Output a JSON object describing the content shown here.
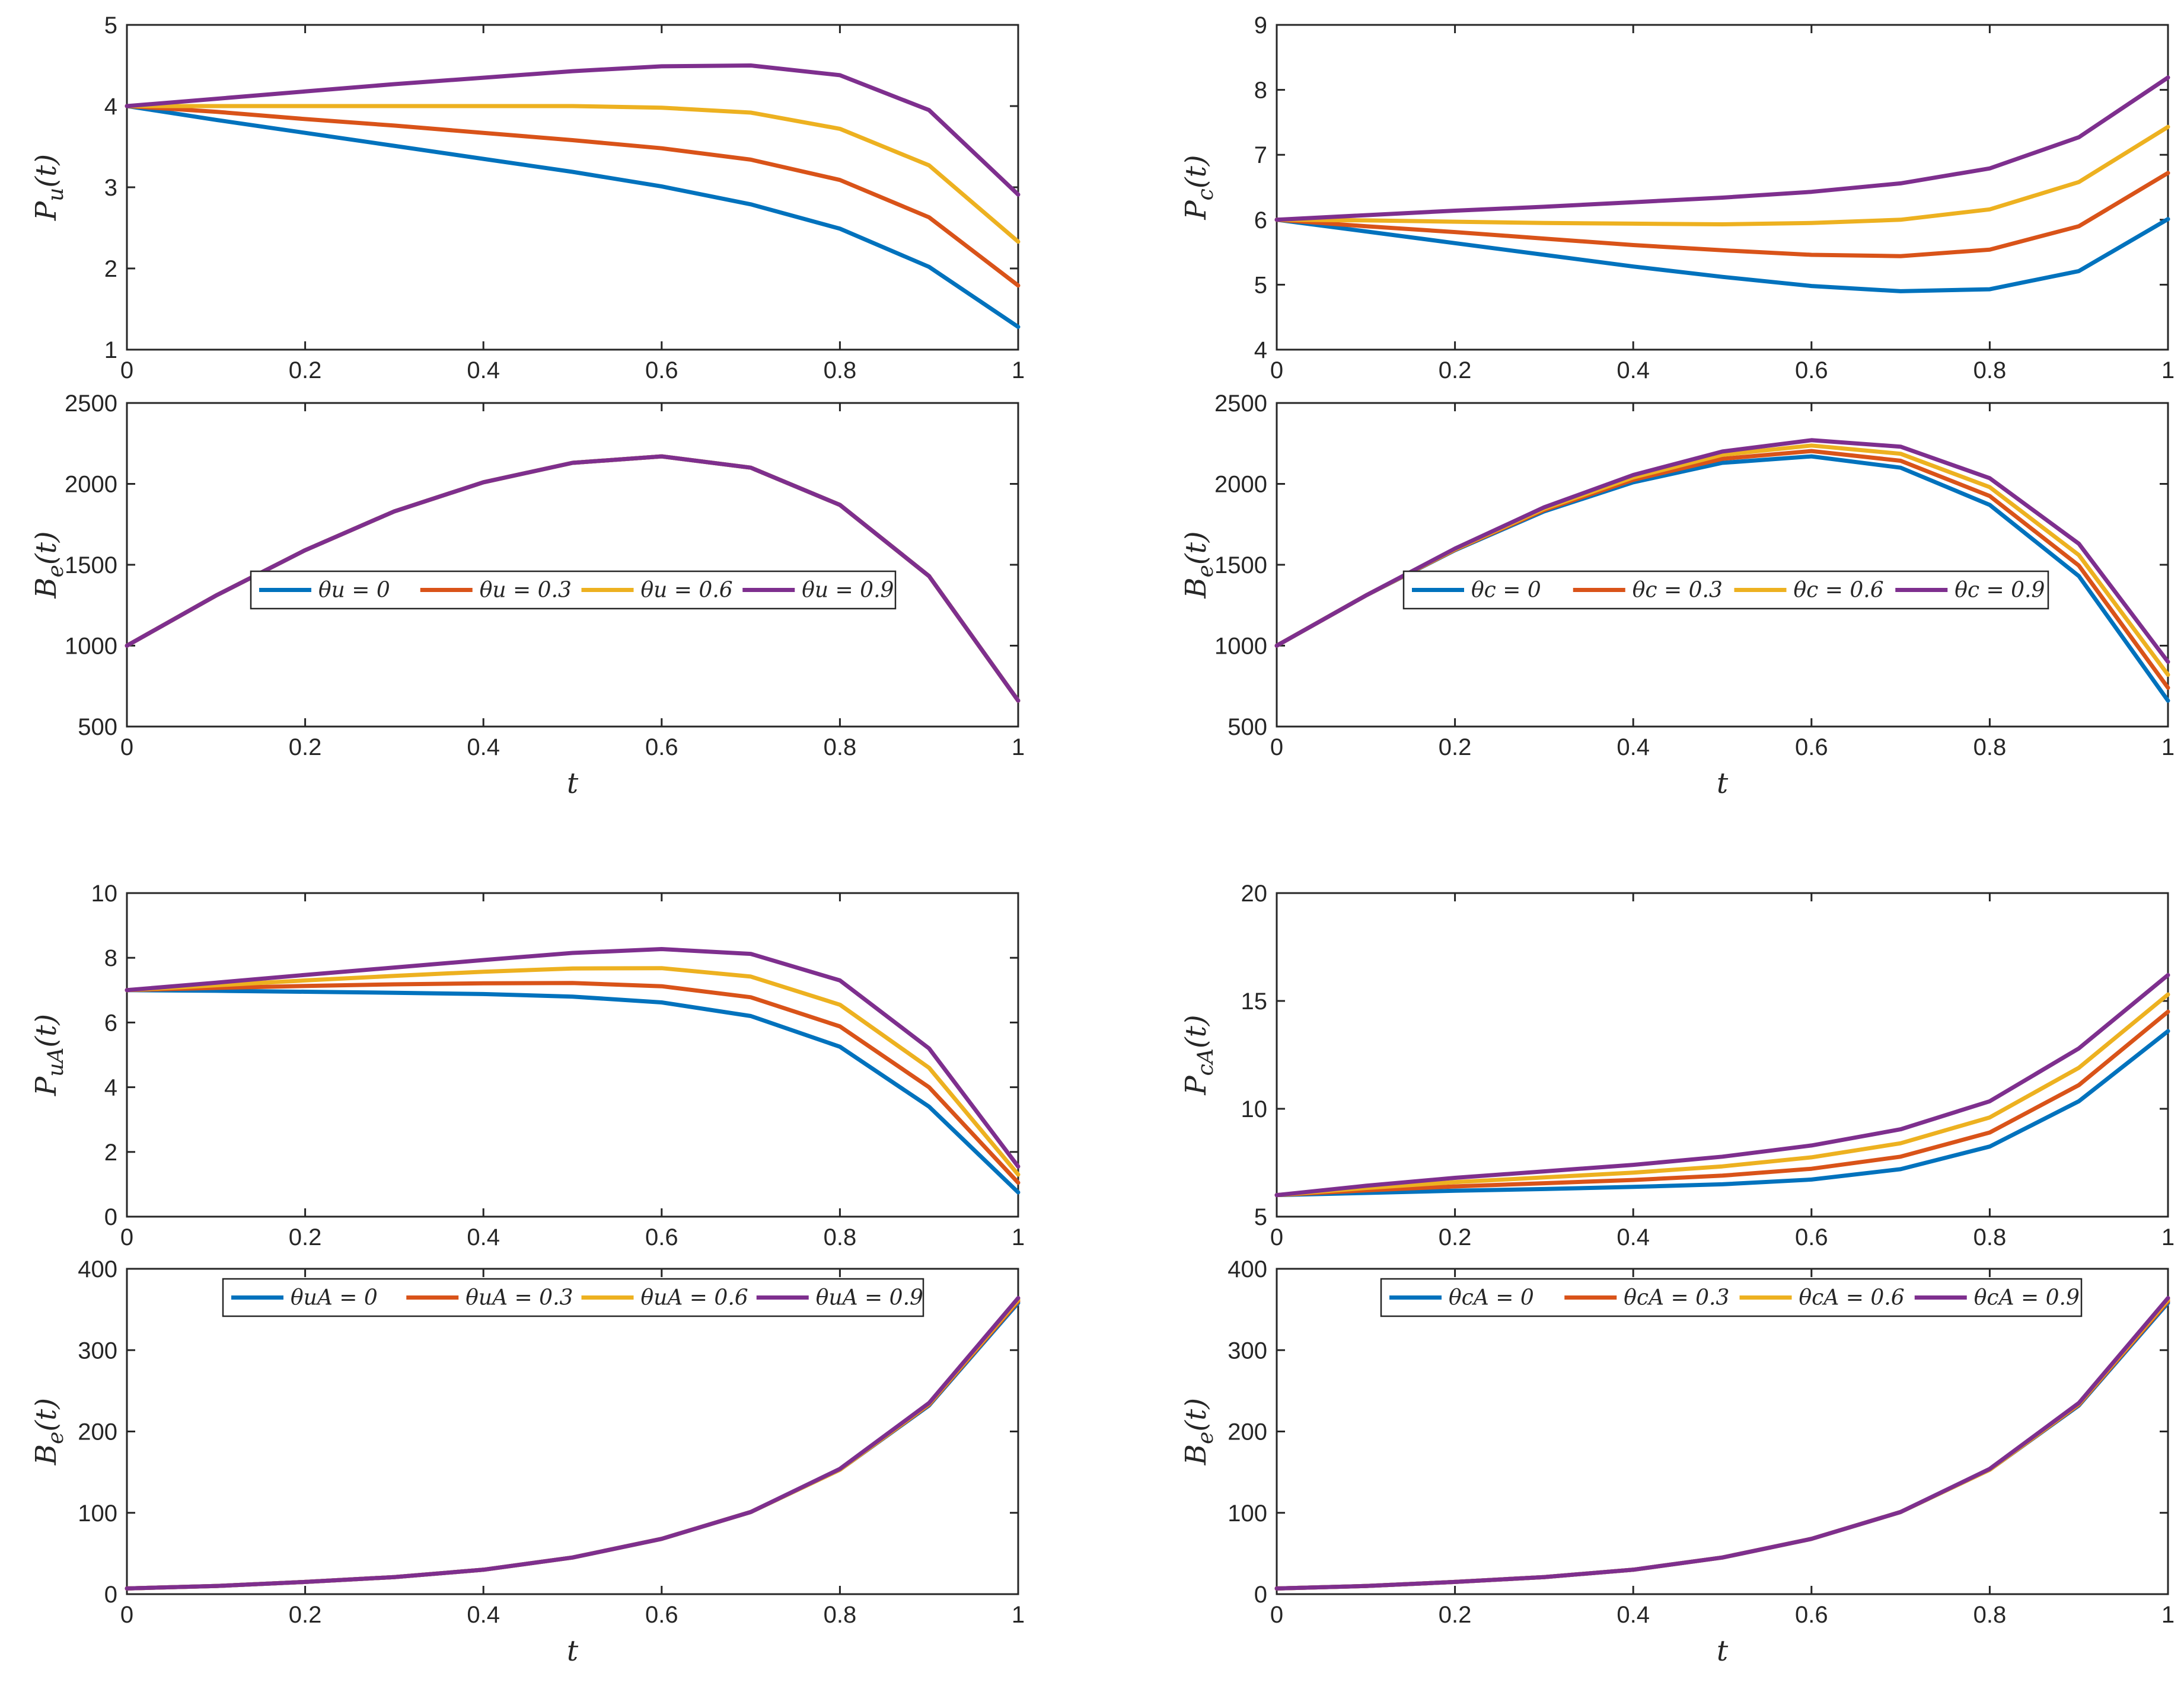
{
  "colors": [
    "#0072BD",
    "#D95319",
    "#EDB120",
    "#7E2F8E"
  ],
  "chart_data": [
    {
      "type": "line",
      "ylabel": "P_u(t)",
      "xlabel": "",
      "xlim": [
        0,
        1
      ],
      "ylim": [
        1,
        5
      ],
      "xticks": [
        "0",
        "0.2",
        "0.4",
        "0.6",
        "0.8",
        "1"
      ],
      "yticks": [
        "1",
        "2",
        "3",
        "4",
        "5"
      ],
      "x": [
        0,
        0.1,
        0.2,
        0.3,
        0.4,
        0.5,
        0.6,
        0.7,
        0.8,
        0.9,
        1
      ],
      "series": [
        {
          "name": "θu = 0",
          "values": [
            4.0,
            3.83,
            3.67,
            3.51,
            3.35,
            3.19,
            3.01,
            2.79,
            2.49,
            2.02,
            1.28
          ]
        },
        {
          "name": "θu = 0.3",
          "values": [
            4.0,
            3.93,
            3.84,
            3.76,
            3.67,
            3.58,
            3.48,
            3.34,
            3.09,
            2.63,
            1.79
          ]
        },
        {
          "name": "θu = 0.6",
          "values": [
            4.0,
            4.0,
            4.0,
            4.0,
            4.0,
            4.0,
            3.98,
            3.92,
            3.72,
            3.27,
            2.33
          ]
        },
        {
          "name": "θu = 0.9",
          "values": [
            4.0,
            4.09,
            4.18,
            4.27,
            4.35,
            4.43,
            4.49,
            4.5,
            4.38,
            3.95,
            2.91
          ]
        }
      ]
    },
    {
      "type": "line",
      "ylabel": "B_e(t)",
      "xlabel": "t",
      "xlim": [
        0,
        1
      ],
      "ylim": [
        500,
        2500
      ],
      "xticks": [
        "0",
        "0.2",
        "0.4",
        "0.6",
        "0.8",
        "1"
      ],
      "yticks": [
        "500",
        "1000",
        "1500",
        "2000",
        "2500"
      ],
      "legend_position": "center",
      "legend": [
        "θu = 0",
        "θu = 0.3",
        "θu = 0.6",
        "θu = 0.9"
      ],
      "x": [
        0,
        0.1,
        0.2,
        0.3,
        0.4,
        0.5,
        0.6,
        0.7,
        0.8,
        0.9,
        1
      ],
      "series": [
        {
          "name": "θu = 0",
          "values": [
            1000,
            1310,
            1590,
            1830,
            2010,
            2130,
            2170,
            2100,
            1870,
            1430,
            660
          ]
        },
        {
          "name": "θu = 0.3",
          "values": [
            1000,
            1310,
            1590,
            1830,
            2010,
            2130,
            2170,
            2100,
            1870,
            1430,
            660
          ]
        },
        {
          "name": "θu = 0.6",
          "values": [
            1000,
            1310,
            1590,
            1830,
            2010,
            2130,
            2170,
            2100,
            1870,
            1430,
            660
          ]
        },
        {
          "name": "θu = 0.9",
          "values": [
            1000,
            1310,
            1590,
            1830,
            2010,
            2130,
            2170,
            2100,
            1870,
            1430,
            660
          ]
        }
      ]
    },
    {
      "type": "line",
      "ylabel": "P_c(t)",
      "xlabel": "",
      "xlim": [
        0,
        1
      ],
      "ylim": [
        4,
        9
      ],
      "xticks": [
        "0",
        "0.2",
        "0.4",
        "0.6",
        "0.8",
        "1"
      ],
      "yticks": [
        "4",
        "5",
        "6",
        "7",
        "8",
        "9"
      ],
      "x": [
        0,
        0.1,
        0.2,
        0.3,
        0.4,
        0.5,
        0.6,
        0.7,
        0.8,
        0.9,
        1
      ],
      "series": [
        {
          "name": "θc = 0",
          "values": [
            6.0,
            5.82,
            5.64,
            5.46,
            5.28,
            5.12,
            4.98,
            4.9,
            4.93,
            5.21,
            6.01
          ]
        },
        {
          "name": "θc = 0.3",
          "values": [
            6.0,
            5.9,
            5.81,
            5.71,
            5.61,
            5.53,
            5.46,
            5.44,
            5.54,
            5.9,
            6.72
          ]
        },
        {
          "name": "θc = 0.6",
          "values": [
            6.0,
            5.99,
            5.97,
            5.95,
            5.94,
            5.93,
            5.95,
            6.0,
            6.16,
            6.58,
            7.43
          ]
        },
        {
          "name": "θc = 0.9",
          "values": [
            6.0,
            6.07,
            6.14,
            6.2,
            6.27,
            6.34,
            6.43,
            6.56,
            6.79,
            7.27,
            8.19
          ]
        }
      ]
    },
    {
      "type": "line",
      "ylabel": "B_e(t)",
      "xlabel": "t",
      "xlim": [
        0,
        1
      ],
      "ylim": [
        500,
        2500
      ],
      "xticks": [
        "0",
        "0.2",
        "0.4",
        "0.6",
        "0.8",
        "1"
      ],
      "yticks": [
        "500",
        "1000",
        "1500",
        "2000",
        "2500"
      ],
      "legend_position": "center",
      "legend": [
        "θc = 0",
        "θc = 0.3",
        "θc = 0.6",
        "θc = 0.9"
      ],
      "x": [
        0,
        0.1,
        0.2,
        0.3,
        0.4,
        0.5,
        0.6,
        0.7,
        0.8,
        0.9,
        1
      ],
      "series": [
        {
          "name": "θc = 0",
          "values": [
            1000,
            1310,
            1590,
            1830,
            2010,
            2130,
            2170,
            2100,
            1870,
            1430,
            660
          ]
        },
        {
          "name": "θc = 0.3",
          "values": [
            1000,
            1310,
            1593,
            1838,
            2025,
            2155,
            2203,
            2143,
            1925,
            1495,
            740
          ]
        },
        {
          "name": "θc = 0.6",
          "values": [
            1000,
            1310,
            1596,
            1846,
            2040,
            2180,
            2237,
            2186,
            1980,
            1560,
            820
          ]
        },
        {
          "name": "θc = 0.9",
          "values": [
            1000,
            1310,
            1600,
            1855,
            2055,
            2200,
            2270,
            2230,
            2035,
            1630,
            900
          ]
        }
      ]
    },
    {
      "type": "line",
      "ylabel": "P_uA(t)",
      "xlabel": "",
      "xlim": [
        0,
        1
      ],
      "ylim": [
        0,
        10
      ],
      "xticks": [
        "0",
        "0.2",
        "0.4",
        "0.6",
        "0.8",
        "1"
      ],
      "yticks": [
        "0",
        "2",
        "4",
        "6",
        "8",
        "10"
      ],
      "x": [
        0,
        0.1,
        0.2,
        0.3,
        0.4,
        0.5,
        0.6,
        0.7,
        0.8,
        0.9,
        1
      ],
      "series": [
        {
          "name": "θuA = 0",
          "values": [
            7.0,
            6.98,
            6.95,
            6.92,
            6.88,
            6.8,
            6.62,
            6.2,
            5.25,
            3.4,
            0.75
          ]
        },
        {
          "name": "θuA = 0.3",
          "values": [
            7.0,
            7.07,
            7.13,
            7.18,
            7.21,
            7.22,
            7.12,
            6.78,
            5.88,
            4.0,
            1.05
          ]
        },
        {
          "name": "θuA = 0.6",
          "values": [
            7.0,
            7.15,
            7.3,
            7.44,
            7.57,
            7.67,
            7.68,
            7.42,
            6.55,
            4.6,
            1.3
          ]
        },
        {
          "name": "θuA = 0.9",
          "values": [
            7.0,
            7.23,
            7.47,
            7.7,
            7.93,
            8.15,
            8.27,
            8.12,
            7.3,
            5.2,
            1.55
          ]
        }
      ]
    },
    {
      "type": "line",
      "ylabel": "B_e(t)",
      "xlabel": "t",
      "xlim": [
        0,
        1
      ],
      "ylim": [
        0,
        400
      ],
      "xticks": [
        "0",
        "0.2",
        "0.4",
        "0.6",
        "0.8",
        "1"
      ],
      "yticks": [
        "0",
        "100",
        "200",
        "300",
        "400"
      ],
      "legend_position": "top",
      "legend": [
        "θuA = 0",
        "θuA = 0.3",
        "θuA = 0.6",
        "θuA = 0.9"
      ],
      "x": [
        0,
        0.1,
        0.2,
        0.3,
        0.4,
        0.5,
        0.6,
        0.7,
        0.8,
        0.9,
        1
      ],
      "series": [
        {
          "name": "θuA = 0",
          "values": [
            7,
            10,
            15,
            21,
            30,
            45,
            68,
            101,
            153,
            232,
            358
          ]
        },
        {
          "name": "θuA = 0.3",
          "values": [
            7,
            10,
            15,
            21,
            30,
            45,
            68,
            101,
            153,
            233,
            360
          ]
        },
        {
          "name": "θuA = 0.6",
          "values": [
            7,
            10,
            15,
            21,
            30,
            45,
            68,
            101,
            153,
            234,
            362
          ]
        },
        {
          "name": "θuA = 0.9",
          "values": [
            7,
            10,
            15,
            21,
            30,
            45,
            68,
            101,
            154,
            235,
            364
          ]
        }
      ]
    },
    {
      "type": "line",
      "ylabel": "P_cA(t)",
      "xlabel": "",
      "xlim": [
        0,
        1
      ],
      "ylim": [
        5,
        20
      ],
      "xticks": [
        "0",
        "0.2",
        "0.4",
        "0.6",
        "0.8",
        "1"
      ],
      "yticks": [
        "5",
        "10",
        "15",
        "20"
      ],
      "x": [
        0,
        0.1,
        0.2,
        0.3,
        0.4,
        0.5,
        0.6,
        0.7,
        0.8,
        0.9,
        1
      ],
      "series": [
        {
          "name": "θcA = 0",
          "values": [
            6.0,
            6.1,
            6.2,
            6.28,
            6.38,
            6.5,
            6.72,
            7.2,
            8.25,
            10.35,
            13.6
          ]
        },
        {
          "name": "θcA = 0.3",
          "values": [
            6.0,
            6.22,
            6.4,
            6.55,
            6.7,
            6.9,
            7.22,
            7.78,
            8.9,
            11.1,
            14.5
          ]
        },
        {
          "name": "θcA = 0.6",
          "values": [
            6.0,
            6.33,
            6.6,
            6.82,
            7.04,
            7.33,
            7.75,
            8.4,
            9.6,
            11.9,
            15.3
          ]
        },
        {
          "name": "θcA = 0.9",
          "values": [
            6.0,
            6.43,
            6.8,
            7.1,
            7.4,
            7.78,
            8.3,
            9.05,
            10.35,
            12.8,
            16.2
          ]
        }
      ]
    },
    {
      "type": "line",
      "ylabel": "B_e(t)",
      "xlabel": "t",
      "xlim": [
        0,
        1
      ],
      "ylim": [
        0,
        400
      ],
      "xticks": [
        "0",
        "0.2",
        "0.4",
        "0.6",
        "0.8",
        "1"
      ],
      "yticks": [
        "0",
        "100",
        "200",
        "300",
        "400"
      ],
      "legend_position": "top",
      "legend": [
        "θcA = 0",
        "θcA = 0.3",
        "θcA = 0.6",
        "θcA = 0.9"
      ],
      "x": [
        0,
        0.1,
        0.2,
        0.3,
        0.4,
        0.5,
        0.6,
        0.7,
        0.8,
        0.9,
        1
      ],
      "series": [
        {
          "name": "θcA = 0",
          "values": [
            7,
            10,
            15,
            21,
            30,
            45,
            68,
            101,
            153,
            232,
            358
          ]
        },
        {
          "name": "θcA = 0.3",
          "values": [
            7,
            10,
            15,
            21,
            30,
            45,
            68,
            101,
            153,
            233,
            360
          ]
        },
        {
          "name": "θcA = 0.6",
          "values": [
            7,
            10,
            15,
            21,
            30,
            45,
            68,
            101,
            153,
            234,
            362
          ]
        },
        {
          "name": "θcA = 0.9",
          "values": [
            7,
            10,
            15,
            21,
            30,
            45,
            68,
            101,
            154,
            235,
            364
          ]
        }
      ]
    }
  ]
}
